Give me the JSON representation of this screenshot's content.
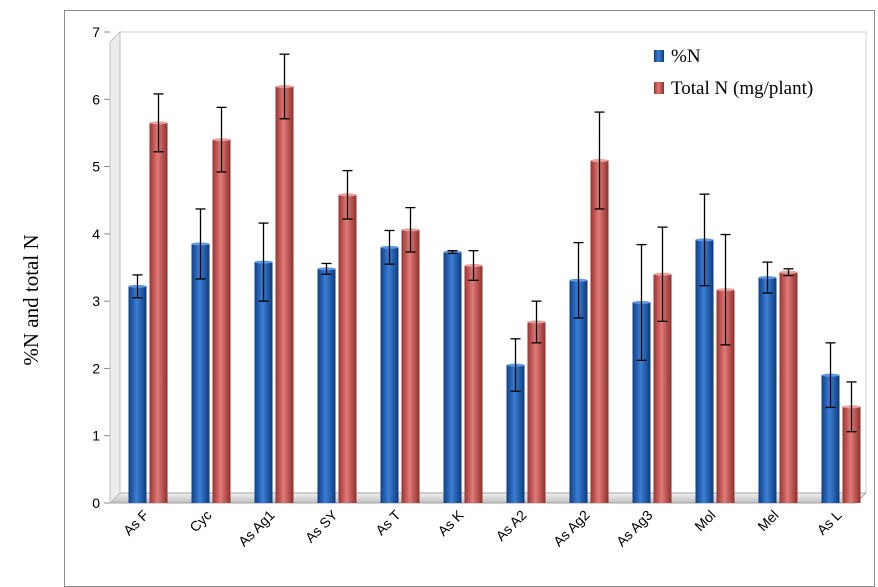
{
  "colors": {
    "series1": "#1f5fb0",
    "series2": "#c0504d",
    "floor": "#d9d9d9",
    "errorbar": "#000000"
  },
  "chart_data": {
    "type": "bar",
    "title": "",
    "xlabel": "",
    "ylabel": "%N and total N",
    "ylim": [
      0,
      7
    ],
    "yticks": [
      0,
      1,
      2,
      3,
      4,
      5,
      6,
      7
    ],
    "grid": false,
    "legend": "top-right",
    "categories": [
      "As F",
      "Cyc",
      "As Ag1",
      "As SY",
      "As T",
      "As K",
      "As A2",
      "As Ag2",
      "As Ag3",
      "Mol",
      "Mel",
      "As L"
    ],
    "series": [
      {
        "name": "%N",
        "values": [
          3.22,
          3.85,
          3.58,
          3.48,
          3.8,
          3.73,
          2.05,
          3.31,
          2.98,
          3.91,
          3.35,
          1.9
        ],
        "errors": [
          0.17,
          0.52,
          0.58,
          0.08,
          0.25,
          0.02,
          0.39,
          0.56,
          0.86,
          0.68,
          0.23,
          0.48
        ]
      },
      {
        "name": "Total N (mg/plant)",
        "values": [
          5.65,
          5.4,
          6.19,
          4.58,
          4.06,
          3.53,
          2.69,
          5.09,
          3.4,
          3.17,
          3.43,
          1.43
        ],
        "errors": [
          0.43,
          0.48,
          0.48,
          0.36,
          0.33,
          0.22,
          0.31,
          0.72,
          0.7,
          0.82,
          0.05,
          0.37
        ]
      }
    ]
  }
}
